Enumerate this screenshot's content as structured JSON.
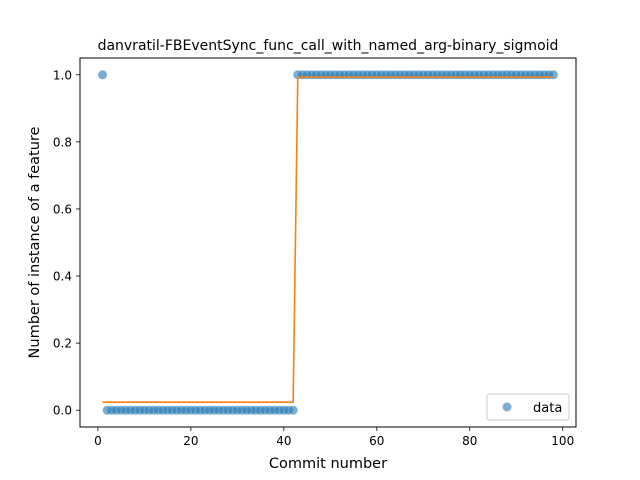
{
  "chart_data": {
    "type": "scatter",
    "title": "danvratil-FBEventSync_func_call_with_named_arg-binary_sigmoid",
    "xlabel": "Commit number",
    "ylabel": "Number of instance of a feature",
    "xlim": [
      -3.85,
      102.85
    ],
    "ylim": [
      -0.05,
      1.05
    ],
    "xticks": [
      0,
      20,
      40,
      60,
      80,
      100
    ],
    "yticks": [
      0.0,
      0.2,
      0.4,
      0.6,
      0.8,
      1.0
    ],
    "xtick_labels": [
      "0",
      "20",
      "40",
      "60",
      "80",
      "100"
    ],
    "ytick_labels": [
      "0.0",
      "0.2",
      "0.4",
      "0.6",
      "0.8",
      "1.0"
    ],
    "legend": {
      "position": "lower-right",
      "entries": [
        "data"
      ]
    },
    "colors": {
      "points": "#1f77b4",
      "fit": "#ff7f0e"
    },
    "series": [
      {
        "name": "data",
        "style": "points",
        "x": [
          1,
          2,
          3,
          4,
          5,
          6,
          7,
          8,
          9,
          10,
          11,
          12,
          13,
          14,
          15,
          16,
          17,
          18,
          19,
          20,
          21,
          22,
          23,
          24,
          25,
          26,
          27,
          28,
          29,
          30,
          31,
          32,
          33,
          34,
          35,
          36,
          37,
          38,
          39,
          40,
          41,
          42,
          43,
          44,
          45,
          46,
          47,
          48,
          49,
          50,
          51,
          52,
          53,
          54,
          55,
          56,
          57,
          58,
          59,
          60,
          61,
          62,
          63,
          64,
          65,
          66,
          67,
          68,
          69,
          70,
          71,
          72,
          73,
          74,
          75,
          76,
          77,
          78,
          79,
          80,
          81,
          82,
          83,
          84,
          85,
          86,
          87,
          88,
          89,
          90,
          91,
          92,
          93,
          94,
          95,
          96,
          97,
          98
        ],
        "y": [
          1,
          0,
          0,
          0,
          0,
          0,
          0,
          0,
          0,
          0,
          0,
          0,
          0,
          0,
          0,
          0,
          0,
          0,
          0,
          0,
          0,
          0,
          0,
          0,
          0,
          0,
          0,
          0,
          0,
          0,
          0,
          0,
          0,
          0,
          0,
          0,
          0,
          0,
          0,
          0,
          0,
          0,
          1,
          1,
          1,
          1,
          1,
          1,
          1,
          1,
          1,
          1,
          1,
          1,
          1,
          1,
          1,
          1,
          1,
          1,
          1,
          1,
          1,
          1,
          1,
          1,
          1,
          1,
          1,
          1,
          1,
          1,
          1,
          1,
          1,
          1,
          1,
          1,
          1,
          1,
          1,
          1,
          1,
          1,
          1,
          1,
          1,
          1,
          1,
          1,
          1,
          1,
          1,
          1,
          1,
          1,
          1,
          1
        ]
      },
      {
        "style": "line",
        "x": [
          1,
          42,
          43,
          98
        ],
        "y": [
          0.024,
          0.024,
          0.993,
          0.993
        ]
      }
    ]
  }
}
